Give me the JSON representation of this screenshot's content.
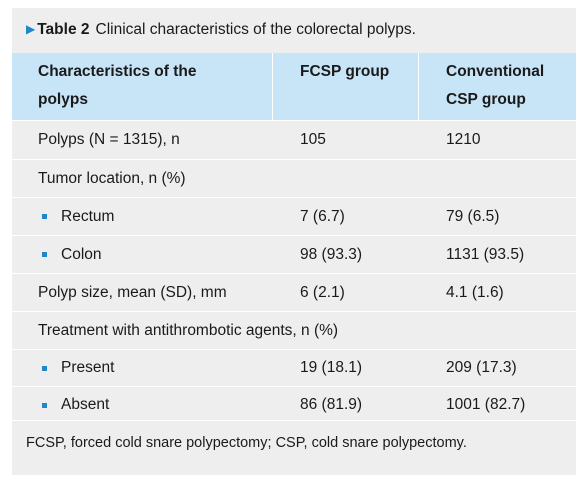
{
  "caption": {
    "arrow": "▶",
    "label": "Table 2",
    "title": "Clinical characteristics of the colorectal polyps."
  },
  "table": {
    "headers": [
      {
        "line1": "Characteristics of the",
        "line2": "polyps"
      },
      {
        "line1": "FCSP group",
        "line2": ""
      },
      {
        "line1": "Conventional",
        "line2": "CSP group"
      }
    ],
    "rows": [
      {
        "label": "Polyps (N = 1315), n",
        "fcsp": "105",
        "csp": "1210",
        "bullet": false
      },
      {
        "label": "Tumor location, n (%)",
        "fcsp": "",
        "csp": "",
        "bullet": false
      },
      {
        "label": "Rectum",
        "fcsp": "7 (6.7)",
        "csp": "79 (6.5)",
        "bullet": true
      },
      {
        "label": "Colon",
        "fcsp": "98 (93.3)",
        "csp": "1131 (93.5)",
        "bullet": true
      },
      {
        "label": "Polyp size, mean (SD), mm",
        "fcsp": "6 (2.1)",
        "csp": "4.1 (1.6)",
        "bullet": false
      },
      {
        "label": "Treatment with antithrombotic agents, n (%)",
        "fcsp": "",
        "csp": "",
        "bullet": false
      },
      {
        "label": "Present",
        "fcsp": "19 (18.1)",
        "csp": "209 (17.3)",
        "bullet": true
      },
      {
        "label": "Absent",
        "fcsp": "86 (81.9)",
        "csp": "1001 (82.7)",
        "bullet": true
      }
    ]
  },
  "footnote": "FCSP, forced cold snare polypectomy; CSP, cold snare polypectomy.",
  "colors": {
    "accent": "#1e88c8",
    "header_bg": "#c8e4f7",
    "panel_bg": "#eeeeee"
  }
}
